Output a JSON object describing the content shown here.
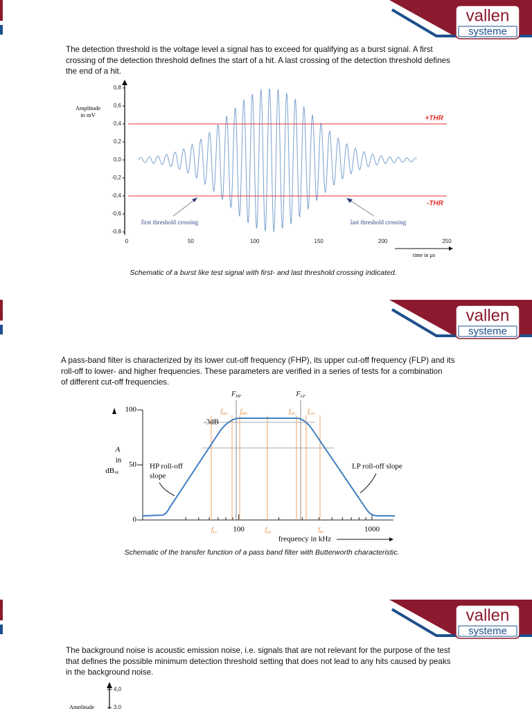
{
  "logo": {
    "top": "vallen",
    "bottom": "systeme"
  },
  "sections": [
    {
      "paragraph": [
        "The detection threshold is the voltage level a signal has to exceed for qualifying as a burst signal. A first",
        "crossing of the detection threshold defines the start of a hit. A last crossing of the detection threshold defines",
        "the end of a hit."
      ],
      "figure": {
        "type": "burst",
        "ylabel": [
          "Amplitude",
          "in mV"
        ],
        "xlabel": "time in µs",
        "xlim": [
          0,
          250
        ],
        "xticks": [
          0,
          50,
          100,
          150,
          200,
          250
        ],
        "ylim": [
          -0.8,
          0.8
        ],
        "yticks": [
          {
            "value": 0.8,
            "label": "0,8"
          },
          {
            "value": 0.6,
            "label": "0,6"
          },
          {
            "value": 0.4,
            "label": "0,4"
          },
          {
            "value": 0.2,
            "label": "0,2"
          },
          {
            "value": 0,
            "label": "0,0"
          },
          {
            "value": -0.2,
            "label": "-0,2"
          },
          {
            "value": -0.4,
            "label": "-0,4"
          },
          {
            "value": -0.6,
            "label": "-0,6"
          },
          {
            "value": -0.8,
            "label": "-0,8"
          }
        ],
        "thresholds": [
          {
            "value": 0.4,
            "label": "+THR"
          },
          {
            "value": -0.4,
            "label": "-THR"
          }
        ],
        "annotations": [
          "first threshold crossing",
          "last threshold crossing"
        ]
      },
      "caption": "Schematic of a burst like test signal with first- and last threshold crossing indicated."
    },
    {
      "paragraph": [
        "A pass-band filter is characterized by its lower cut-off frequency (FHP), its upper cut-off frequency (FLP) and its",
        "roll-off to lower- and higher frequencies. These parameters are verified in a series of tests for a combination",
        "of different cut-off frequencies."
      ],
      "figure": {
        "type": "filter",
        "ylabel": {
          "lines": [
            "A",
            "in"
          ],
          "main": "dB",
          "sub": "AE"
        },
        "xlabel": "frequency in kHz",
        "log_x": true,
        "xlim": [
          19,
          1450
        ],
        "xticks": [
          100,
          1000
        ],
        "minor_xticks": [
          40,
          50,
          60,
          70,
          80,
          90,
          200,
          300,
          400,
          500,
          600,
          700,
          800,
          900
        ],
        "ylim": [
          0,
          100
        ],
        "yticks": [
          0,
          50,
          100
        ],
        "marks": [
          {
            "main": "F",
            "sub": "HP"
          },
          {
            "main": "F",
            "sub": "LP"
          },
          {
            "main": "f",
            "sub": "HP-"
          },
          {
            "main": "f",
            "sub": "HP+"
          },
          {
            "main": "f",
            "sub": "LP-"
          },
          {
            "main": "f",
            "sub": "LP+"
          },
          {
            "main": "f",
            "sub": "Lo"
          },
          {
            "main": "f",
            "sub": "pm"
          },
          {
            "main": "f",
            "sub": "Hi"
          }
        ],
        "annotations": [
          "-3dB",
          "HP roll-off",
          "slope",
          "LP roll-off slope"
        ]
      },
      "caption": "Schematic of the transfer function of a pass band filter with Butterworth characteristic."
    },
    {
      "paragraph": [
        "The background noise is acoustic emission noise, i.e. signals that are not relevant for the purpose of the test",
        "that defines the possible minimum detection threshold setting that does not lead to any hits caused by peaks",
        "in the background noise."
      ],
      "figure": {
        "type": "noise",
        "ylabel": "Amplitude",
        "ylim": [
          0,
          4
        ],
        "yticks": [
          {
            "value": 4,
            "label": "4,0"
          },
          {
            "value": 3,
            "label": "3,0"
          }
        ]
      }
    }
  ]
}
